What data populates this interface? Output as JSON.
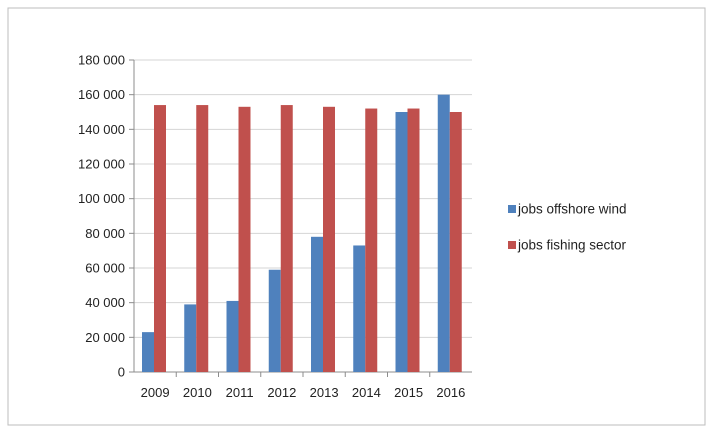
{
  "chart_data": {
    "type": "bar",
    "title": "",
    "xlabel": "",
    "ylabel": "",
    "categories": [
      "2009",
      "2010",
      "2011",
      "2012",
      "2013",
      "2014",
      "2015",
      "2016"
    ],
    "series": [
      {
        "name": "jobs offshore wind",
        "color": "#4f81bd",
        "values": [
          23000,
          39000,
          41000,
          59000,
          78000,
          73000,
          150000,
          160000
        ]
      },
      {
        "name": "jobs fishing sector",
        "color": "#c0504d",
        "values": [
          154000,
          154000,
          153000,
          154000,
          153000,
          152000,
          152000,
          150000
        ]
      }
    ],
    "ylim": [
      0,
      180000
    ],
    "yticks": [
      0,
      20000,
      40000,
      60000,
      80000,
      100000,
      120000,
      140000,
      160000,
      180000
    ],
    "ytick_labels": [
      "0",
      "20 000",
      "40 000",
      "60 000",
      "80 000",
      "100 000",
      "120 000",
      "140 000",
      "160 000",
      "180 000"
    ],
    "grid": true,
    "legend_position": "right"
  }
}
